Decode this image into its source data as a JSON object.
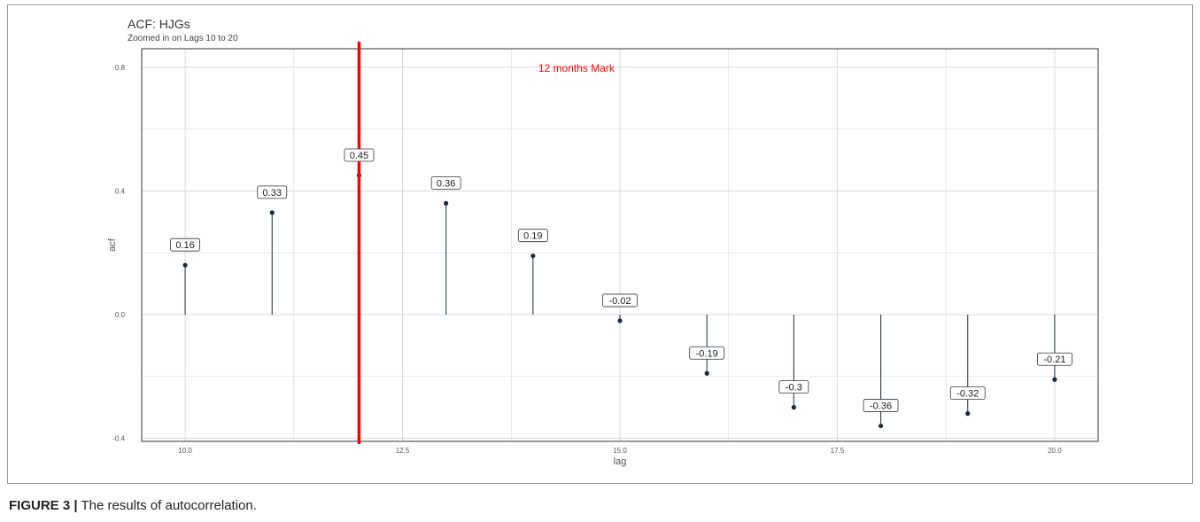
{
  "chart_data": {
    "type": "lollipop",
    "title": "ACF: HJGs",
    "subtitle": "Zoomed in on Lags 10 to 20",
    "xlabel": "lag",
    "ylabel": "acf",
    "xlim": [
      9.5,
      20.5
    ],
    "ylim": [
      -0.41,
      0.86
    ],
    "x_ticks": [
      "10.0",
      "12.5",
      "15.0",
      "17.5",
      "20.0"
    ],
    "y_ticks": [
      "-0.4",
      "0.0",
      "0.4",
      "0.8"
    ],
    "grid": true,
    "x": [
      10,
      11,
      12,
      13,
      14,
      15,
      16,
      17,
      18,
      19,
      20
    ],
    "values": [
      0.16,
      0.33,
      0.45,
      0.36,
      0.19,
      -0.02,
      -0.19,
      -0.3,
      -0.36,
      -0.32,
      -0.21
    ],
    "labels": [
      "0.16",
      "0.33",
      "0.45",
      "0.36",
      "0.19",
      "-0.02",
      "-0.19",
      "-0.3",
      "-0.36",
      "-0.32",
      "-0.21"
    ],
    "reference_line": {
      "x": 12,
      "color": "#ff0000",
      "label": "12 months Mark",
      "label_x": 14.5,
      "label_y": 0.8
    },
    "colors": {
      "stem": "#2c3e50",
      "point": "#1a2a3a",
      "grid": "#d9d9d9",
      "annotation": "#ff0000"
    }
  },
  "caption": {
    "label": "FIGURE 3 |",
    "text": " The results of autocorrelation."
  }
}
